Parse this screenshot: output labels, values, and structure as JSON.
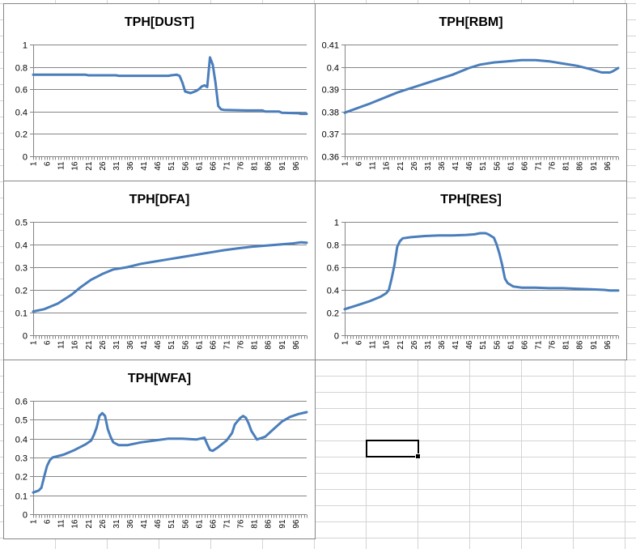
{
  "sheet": {
    "selected_cell_label": "",
    "gridline_color": "#d4d4d4"
  },
  "chart_data": [
    {
      "id": "dust",
      "type": "line",
      "title": "TPH[DUST]",
      "ylim": [
        0,
        1
      ],
      "yticks": [
        "0",
        "0.2",
        "0.4",
        "0.6",
        "0.8",
        "1"
      ],
      "grid": true,
      "legend": "none",
      "line_color": "#4a7ebb",
      "x": {
        "start": 1,
        "end": 100,
        "tick_labels": [
          "1",
          "6",
          "11",
          "16",
          "21",
          "26",
          "31",
          "36",
          "41",
          "46",
          "51",
          "56",
          "61",
          "66",
          "71",
          "76",
          "81",
          "86",
          "91",
          "96"
        ]
      },
      "series": [
        {
          "points": [
            [
              1,
              0.73
            ],
            [
              20,
              0.73
            ],
            [
              21,
              0.725
            ],
            [
              31,
              0.725
            ],
            [
              32,
              0.72
            ],
            [
              50,
              0.72
            ],
            [
              51,
              0.725
            ],
            [
              53,
              0.73
            ],
            [
              54,
              0.72
            ],
            [
              55,
              0.66
            ],
            [
              56,
              0.58
            ],
            [
              58,
              0.565
            ],
            [
              60,
              0.585
            ],
            [
              61,
              0.6
            ],
            [
              62,
              0.625
            ],
            [
              63,
              0.635
            ],
            [
              64,
              0.62
            ],
            [
              65,
              0.885
            ],
            [
              66,
              0.82
            ],
            [
              67,
              0.66
            ],
            [
              68,
              0.45
            ],
            [
              69,
              0.42
            ],
            [
              70,
              0.415
            ],
            [
              78,
              0.41
            ],
            [
              84,
              0.41
            ],
            [
              85,
              0.4
            ],
            [
              90,
              0.4
            ],
            [
              91,
              0.39
            ],
            [
              97,
              0.385
            ],
            [
              98,
              0.38
            ],
            [
              100,
              0.38
            ]
          ]
        }
      ]
    },
    {
      "id": "rbm",
      "type": "line",
      "title": "TPH[RBM]",
      "ylim": [
        0.36,
        0.41
      ],
      "yticks": [
        "0.36",
        "0.37",
        "0.38",
        "0.39",
        "0.4",
        "0.41"
      ],
      "grid": true,
      "legend": "none",
      "line_color": "#4a7ebb",
      "x": {
        "start": 1,
        "end": 100,
        "tick_labels": [
          "1",
          "6",
          "11",
          "16",
          "21",
          "26",
          "31",
          "36",
          "41",
          "46",
          "51",
          "56",
          "61",
          "66",
          "71",
          "76",
          "81",
          "86",
          "91",
          "96"
        ]
      },
      "series": [
        {
          "points": [
            [
              1,
              0.3795
            ],
            [
              10,
              0.3835
            ],
            [
              20,
              0.3885
            ],
            [
              30,
              0.3925
            ],
            [
              40,
              0.3965
            ],
            [
              46,
              0.3995
            ],
            [
              50,
              0.401
            ],
            [
              55,
              0.402
            ],
            [
              60,
              0.4025
            ],
            [
              65,
              0.403
            ],
            [
              70,
              0.403
            ],
            [
              75,
              0.4025
            ],
            [
              80,
              0.4015
            ],
            [
              85,
              0.4005
            ],
            [
              90,
              0.399
            ],
            [
              94,
              0.3975
            ],
            [
              97,
              0.3975
            ],
            [
              98,
              0.398
            ],
            [
              100,
              0.3995
            ]
          ]
        }
      ]
    },
    {
      "id": "dfa",
      "type": "line",
      "title": "TPH[DFA]",
      "ylim": [
        0,
        0.5
      ],
      "yticks": [
        "0",
        "0.1",
        "0.2",
        "0.3",
        "0.4",
        "0.5"
      ],
      "grid": true,
      "legend": "none",
      "line_color": "#4a7ebb",
      "x": {
        "start": 1,
        "end": 100,
        "tick_labels": [
          "1",
          "6",
          "11",
          "16",
          "21",
          "26",
          "31",
          "36",
          "41",
          "46",
          "51",
          "56",
          "61",
          "66",
          "71",
          "76",
          "81",
          "86",
          "91",
          "96"
        ]
      },
      "series": [
        {
          "points": [
            [
              1,
              0.105
            ],
            [
              5,
              0.115
            ],
            [
              10,
              0.14
            ],
            [
              15,
              0.18
            ],
            [
              18,
              0.21
            ],
            [
              22,
              0.245
            ],
            [
              26,
              0.27
            ],
            [
              30,
              0.29
            ],
            [
              35,
              0.3
            ],
            [
              40,
              0.315
            ],
            [
              45,
              0.325
            ],
            [
              50,
              0.335
            ],
            [
              55,
              0.345
            ],
            [
              60,
              0.355
            ],
            [
              65,
              0.365
            ],
            [
              70,
              0.375
            ],
            [
              75,
              0.383
            ],
            [
              80,
              0.39
            ],
            [
              85,
              0.395
            ],
            [
              90,
              0.4
            ],
            [
              95,
              0.405
            ],
            [
              98,
              0.41
            ],
            [
              100,
              0.408
            ]
          ]
        }
      ]
    },
    {
      "id": "res",
      "type": "line",
      "title": "TPH[RES]",
      "ylim": [
        0,
        1
      ],
      "yticks": [
        "0",
        "0.2",
        "0.4",
        "0.6",
        "0.8",
        "1"
      ],
      "grid": true,
      "legend": "none",
      "line_color": "#4a7ebb",
      "x": {
        "start": 1,
        "end": 100,
        "tick_labels": [
          "1",
          "6",
          "11",
          "16",
          "21",
          "26",
          "31",
          "36",
          "41",
          "46",
          "51",
          "56",
          "61",
          "66",
          "71",
          "76",
          "81",
          "86",
          "91",
          "96"
        ]
      },
      "series": [
        {
          "points": [
            [
              1,
              0.23
            ],
            [
              5,
              0.26
            ],
            [
              10,
              0.3
            ],
            [
              14,
              0.34
            ],
            [
              16,
              0.37
            ],
            [
              17,
              0.4
            ],
            [
              18,
              0.5
            ],
            [
              19,
              0.62
            ],
            [
              20,
              0.78
            ],
            [
              21,
              0.83
            ],
            [
              22,
              0.855
            ],
            [
              25,
              0.865
            ],
            [
              30,
              0.875
            ],
            [
              35,
              0.88
            ],
            [
              40,
              0.88
            ],
            [
              45,
              0.885
            ],
            [
              48,
              0.89
            ],
            [
              50,
              0.9
            ],
            [
              52,
              0.9
            ],
            [
              53,
              0.89
            ],
            [
              55,
              0.86
            ],
            [
              56,
              0.8
            ],
            [
              57,
              0.72
            ],
            [
              58,
              0.62
            ],
            [
              59,
              0.5
            ],
            [
              60,
              0.46
            ],
            [
              62,
              0.43
            ],
            [
              65,
              0.42
            ],
            [
              70,
              0.42
            ],
            [
              75,
              0.415
            ],
            [
              80,
              0.415
            ],
            [
              85,
              0.41
            ],
            [
              90,
              0.405
            ],
            [
              95,
              0.4
            ],
            [
              97,
              0.395
            ],
            [
              100,
              0.395
            ]
          ]
        }
      ]
    },
    {
      "id": "wfa",
      "type": "line",
      "title": "TPH[WFA]",
      "ylim": [
        0,
        0.6
      ],
      "yticks": [
        "0",
        "0.1",
        "0.2",
        "0.3",
        "0.4",
        "0.5",
        "0.6"
      ],
      "grid": true,
      "legend": "none",
      "line_color": "#4a7ebb",
      "x": {
        "start": 1,
        "end": 100,
        "tick_labels": [
          "1",
          "6",
          "11",
          "16",
          "21",
          "26",
          "31",
          "36",
          "41",
          "46",
          "51",
          "56",
          "61",
          "66",
          "71",
          "76",
          "81",
          "86",
          "91",
          "96"
        ]
      },
      "series": [
        {
          "points": [
            [
              1,
              0.115
            ],
            [
              3,
              0.125
            ],
            [
              4,
              0.14
            ],
            [
              5,
              0.2
            ],
            [
              6,
              0.255
            ],
            [
              7,
              0.285
            ],
            [
              8,
              0.3
            ],
            [
              12,
              0.315
            ],
            [
              16,
              0.34
            ],
            [
              20,
              0.37
            ],
            [
              22,
              0.39
            ],
            [
              23,
              0.42
            ],
            [
              24,
              0.46
            ],
            [
              25,
              0.52
            ],
            [
              26,
              0.535
            ],
            [
              27,
              0.52
            ],
            [
              28,
              0.45
            ],
            [
              29,
              0.41
            ],
            [
              30,
              0.38
            ],
            [
              32,
              0.365
            ],
            [
              35,
              0.365
            ],
            [
              40,
              0.38
            ],
            [
              45,
              0.39
            ],
            [
              50,
              0.4
            ],
            [
              55,
              0.4
            ],
            [
              60,
              0.395
            ],
            [
              63,
              0.405
            ],
            [
              64,
              0.37
            ],
            [
              65,
              0.34
            ],
            [
              66,
              0.335
            ],
            [
              68,
              0.355
            ],
            [
              71,
              0.39
            ],
            [
              73,
              0.43
            ],
            [
              74,
              0.475
            ],
            [
              76,
              0.51
            ],
            [
              77,
              0.52
            ],
            [
              78,
              0.51
            ],
            [
              79,
              0.48
            ],
            [
              80,
              0.44
            ],
            [
              82,
              0.395
            ],
            [
              85,
              0.41
            ],
            [
              88,
              0.45
            ],
            [
              91,
              0.49
            ],
            [
              94,
              0.515
            ],
            [
              97,
              0.53
            ],
            [
              100,
              0.54
            ]
          ]
        }
      ]
    }
  ]
}
